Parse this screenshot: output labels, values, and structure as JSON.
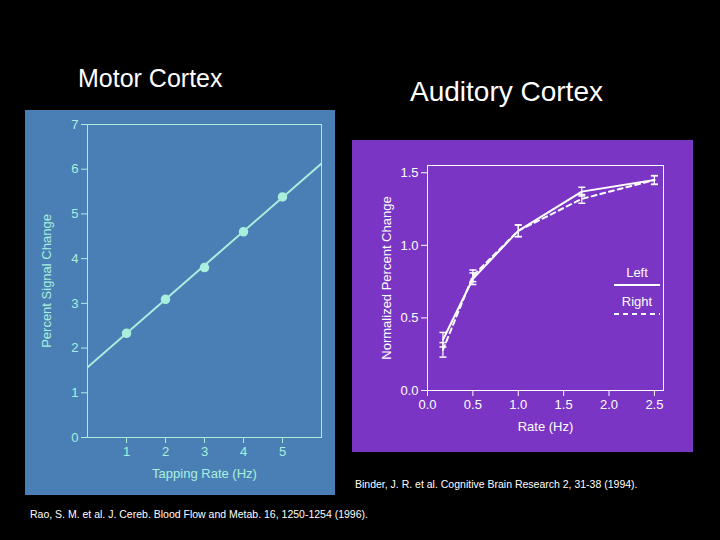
{
  "chart_data": [
    {
      "type": "line",
      "title": "Motor Cortex",
      "caption": "Rao, S. M. et al. J. Cereb. Blood Flow and Metab. 16, 1250-1254 (1996).",
      "x_label": "Tapping Rate (Hz)",
      "y_label": "Percent Signal Change",
      "xlim": [
        0,
        6
      ],
      "ylim": [
        0,
        7
      ],
      "xticks": [
        1,
        2,
        3,
        4,
        5
      ],
      "yticks": [
        0,
        1,
        2,
        3,
        4,
        5,
        6,
        7
      ],
      "color": "#a8f0dc",
      "series": [
        {
          "type": "scatter",
          "marker": "circle",
          "x": [
            1,
            2,
            3,
            4,
            5
          ],
          "values": [
            2.33,
            3.09,
            3.8,
            4.6,
            5.38
          ]
        },
        {
          "type": "line",
          "x": [
            0,
            6
          ],
          "values": [
            1.57,
            6.13
          ]
        }
      ]
    },
    {
      "type": "line",
      "title": "Auditory Cortex",
      "caption": "Binder, J. R. et al. Cognitive Brain Research 2, 31-38 (1994).",
      "x_label": "Rate (Hz)",
      "y_label": "Normalized Percent Change",
      "xlim": [
        0,
        2.6
      ],
      "ylim": [
        0,
        1.55
      ],
      "xticks": [
        {
          "value": 0,
          "label": "0.0"
        },
        {
          "value": 0.5,
          "label": "0.5"
        },
        {
          "value": 1,
          "label": "1.0"
        },
        {
          "value": 1.5,
          "label": "1.5"
        },
        {
          "value": 2,
          "label": "2.0"
        },
        {
          "value": 2.5,
          "label": "2.5"
        }
      ],
      "yticks": [
        {
          "value": 0,
          "label": "0.0"
        },
        {
          "value": 0.5,
          "label": "0.5"
        },
        {
          "value": 1,
          "label": "1.0"
        },
        {
          "value": 1.5,
          "label": "1.5"
        }
      ],
      "legend": "right",
      "x": [
        0.17,
        0.5,
        1.0,
        1.7,
        2.5
      ],
      "series": [
        {
          "name": "Left",
          "color": "#ffffff",
          "line_style": "solid",
          "values": [
            0.35,
            0.77,
            1.1,
            1.37,
            1.45
          ],
          "errors": [
            0.05,
            0.04,
            0.04,
            0.03,
            0.03
          ]
        },
        {
          "name": "Right",
          "color": "#ffffff",
          "line_style": "dashed",
          "values": [
            0.28,
            0.79,
            1.1,
            1.32,
            1.45
          ],
          "errors": [
            0.05,
            0.04,
            0.04,
            0.03,
            0.03
          ]
        }
      ]
    }
  ]
}
